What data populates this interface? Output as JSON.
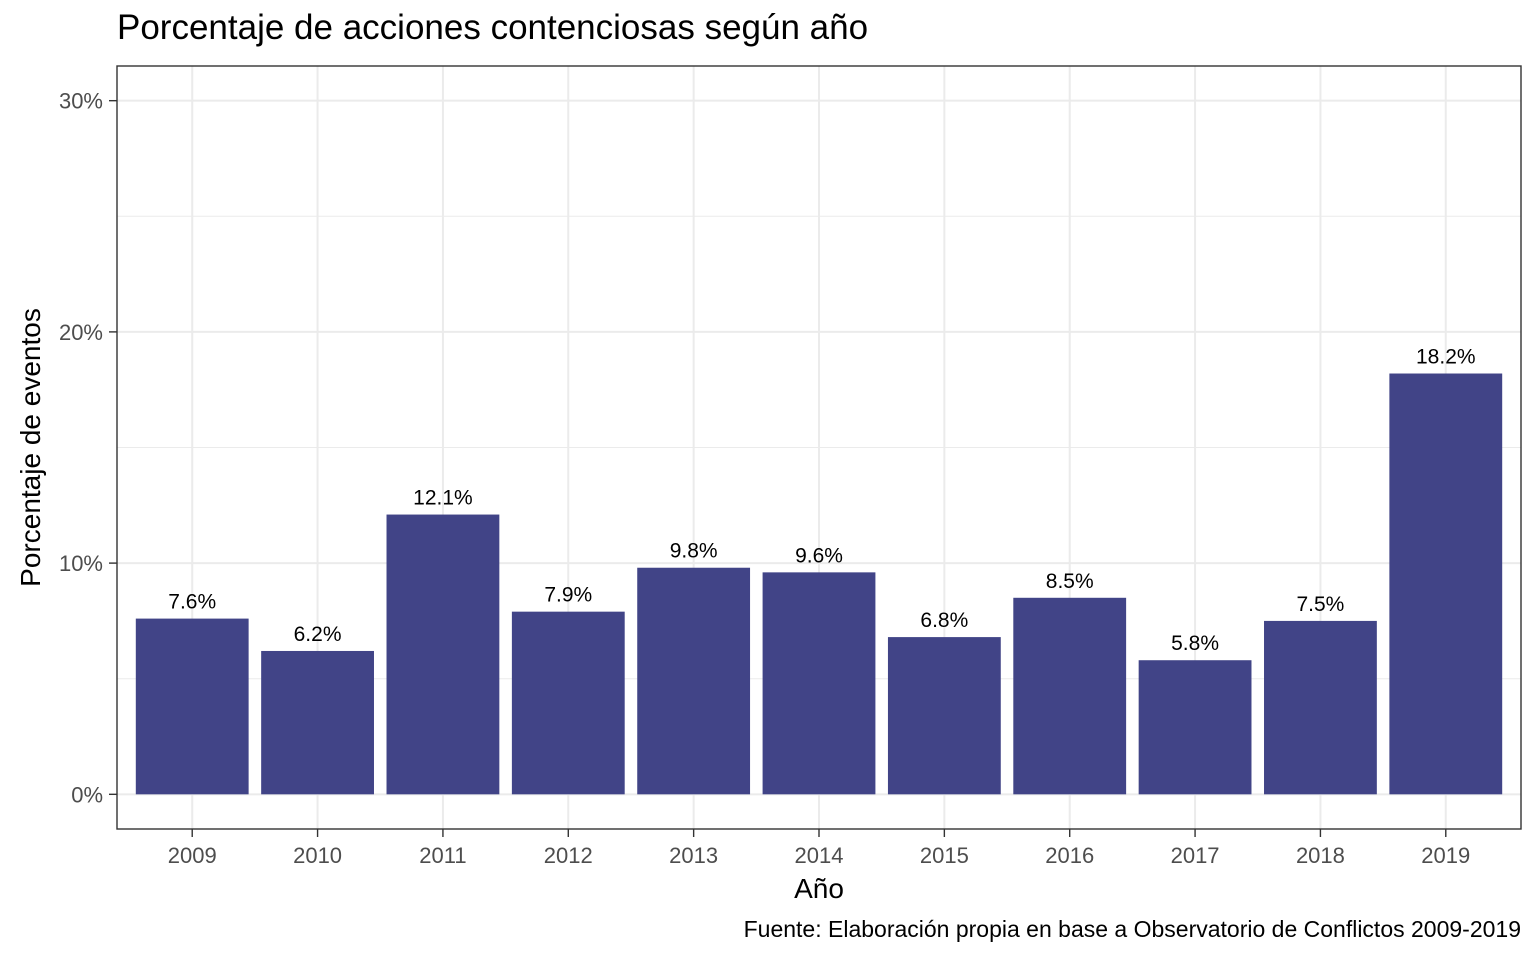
{
  "chart_data": {
    "type": "bar",
    "title": "Porcentaje de acciones contenciosas según año",
    "xlabel": "Año",
    "ylabel": "Porcentaje de eventos",
    "caption": "Fuente: Elaboración propia en base a Observatorio de Conflictos 2009-2019",
    "categories": [
      "2009",
      "2010",
      "2011",
      "2012",
      "2013",
      "2014",
      "2015",
      "2016",
      "2017",
      "2018",
      "2019"
    ],
    "values": [
      7.6,
      6.2,
      12.1,
      7.9,
      9.8,
      9.6,
      6.8,
      8.5,
      5.8,
      7.5,
      18.2
    ],
    "data_labels": [
      "7.6%",
      "6.2%",
      "12.1%",
      "7.9%",
      "9.8%",
      "9.6%",
      "6.8%",
      "8.5%",
      "5.8%",
      "7.5%",
      "18.2%"
    ],
    "y_ticks": [
      0,
      10,
      20,
      30
    ],
    "y_tick_labels": [
      "0%",
      "10%",
      "20%",
      "30%"
    ],
    "ylim": [
      -1.5,
      31.5
    ],
    "grid": true,
    "colors": {
      "bar": "#414487",
      "grid": "#ebebeb",
      "panel_border": "#333333"
    }
  }
}
